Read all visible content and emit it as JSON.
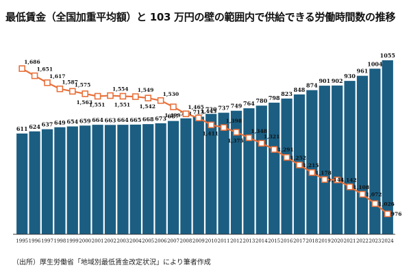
{
  "title": "最低賃金（全国加重平均額）と 103 万円の壁の範囲内で供給できる労働時間数の推移",
  "source": "（出所）厚生労働省「地域別最低賃金改定状況」により筆者作成",
  "colors": {
    "bar": "#1b5e82",
    "line": "#e8703a",
    "marker_fill": "#ffffff",
    "axis": "#333333"
  },
  "chart_data": {
    "type": "bar",
    "categories": [
      "1995",
      "1996",
      "1997",
      "1998",
      "1999",
      "2000",
      "2001",
      "2002",
      "2003",
      "2004",
      "2005",
      "2006",
      "2007",
      "2008",
      "2009",
      "2010",
      "2011",
      "2012",
      "2013",
      "2014",
      "2015",
      "2016",
      "2017",
      "2018",
      "2019",
      "2020",
      "2021",
      "2022",
      "2023",
      "2024"
    ],
    "series": [
      {
        "type": "bar",
        "values": [
          611,
          624,
          637,
          649,
          654,
          659,
          664,
          663,
          664,
          665,
          668,
          673,
          687,
          703,
          713,
          730,
          737,
          749,
          764,
          780,
          798,
          823,
          848,
          874,
          901,
          902,
          930,
          961,
          1004,
          1055
        ]
      },
      {
        "type": "line",
        "values": [
          1686,
          1651,
          1617,
          1587,
          1575,
          1563,
          1551,
          1554,
          1551,
          1549,
          1542,
          1530,
          1499,
          1465,
          1445,
          1411,
          1398,
          1375,
          1348,
          1321,
          1291,
          1252,
          1215,
          1178,
          1144,
          1142,
          1108,
          1072,
          1026,
          976
        ]
      }
    ],
    "bar_labels": [
      "611",
      "624",
      "637",
      "649",
      "654",
      "659",
      "664",
      "663",
      "664",
      "665",
      "668",
      "673",
      "687",
      "703",
      "713",
      "730",
      "737",
      "749",
      "764",
      "780",
      "798",
      "823",
      "848",
      "874",
      "901",
      "902",
      "930",
      "961",
      "1004",
      "1055"
    ],
    "line_labels": [
      "1,686",
      "1,651",
      "1,617",
      "1,587",
      "1,575",
      "1,563",
      "1,551",
      "1,554",
      "1,551",
      "1,549",
      "1,542",
      "1,530",
      "1,499",
      "1,465",
      "1,445",
      "1,411",
      "1,398",
      "1,375",
      "1,348",
      "1,321",
      "1,291",
      "1,252",
      "1,215",
      "1,178",
      "1,144",
      "1,142",
      "1,108",
      "1,072",
      "1,026",
      "976"
    ],
    "bar_ylim": [
      0,
      1100
    ],
    "line_ylim": [
      950,
      1720
    ]
  }
}
